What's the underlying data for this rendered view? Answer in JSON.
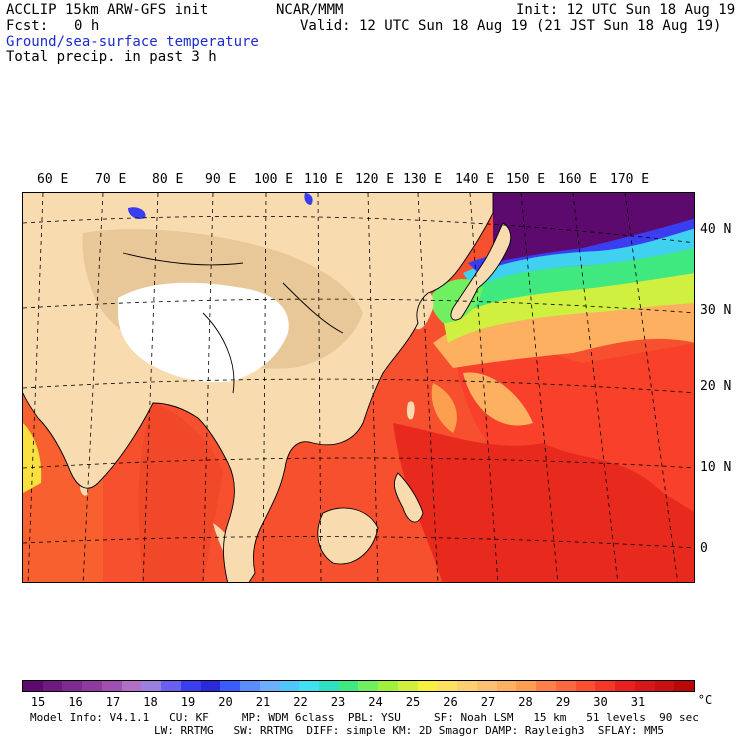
{
  "header": {
    "model": "ACCLIP 15km ARW-GFS init",
    "org": "NCAR/MMM",
    "init": "Init: 12 UTC Sun 18 Aug 19",
    "fcst_label": "Fcst:",
    "fcst_value": "0 h",
    "valid": "Valid: 12 UTC Sun 18 Aug 19 (21 JST Sun 18 Aug 19)",
    "field1": "Ground/sea-surface temperature",
    "field2": "Total precip. in past 3 h"
  },
  "map": {
    "lon_labels": [
      "60 E",
      "70 E",
      "80 E",
      "90 E",
      "100 E",
      "110 E",
      "120 E",
      "130 E",
      "140 E",
      "150 E",
      "160 E",
      "170 E"
    ],
    "lat_labels": [
      "40 N",
      "30 N",
      "20 N",
      "10 N",
      "0"
    ]
  },
  "colorbar": {
    "unit": "°C",
    "ticks": [
      "15",
      "16",
      "17",
      "18",
      "19",
      "20",
      "21",
      "22",
      "23",
      "24",
      "25",
      "26",
      "27",
      "28",
      "29",
      "30",
      "31"
    ],
    "colors": [
      "#5c0a6e",
      "#6e1a80",
      "#7f2a90",
      "#903aa0",
      "#a050b0",
      "#b070c4",
      "#9a7ee0",
      "#6a60f0",
      "#3a3ef0",
      "#2a2ad8",
      "#3a5cff",
      "#5c8cff",
      "#6ab0ff",
      "#50c8ff",
      "#40e0f0",
      "#30e0c0",
      "#40e880",
      "#70f060",
      "#a0f040",
      "#d0f040",
      "#f8f040",
      "#fce060",
      "#fcd070",
      "#fcc070",
      "#fcb060",
      "#fca050",
      "#fc8048",
      "#fc6840",
      "#fa5030",
      "#f43828",
      "#e82020",
      "#d81818",
      "#c81010",
      "#b80808"
    ]
  },
  "footer": {
    "line1": "Model Info: V4.1.1   CU: KF     MP: WDM 6class  PBL: YSU     SF: Noah LSM   15 km   51 levels  90 sec",
    "line2": "LW: RRTMG   SW: RRTMG  DIFF: simple KM: 2D Smagor DAMP: Rayleigh3  SFLAY: MM5"
  }
}
